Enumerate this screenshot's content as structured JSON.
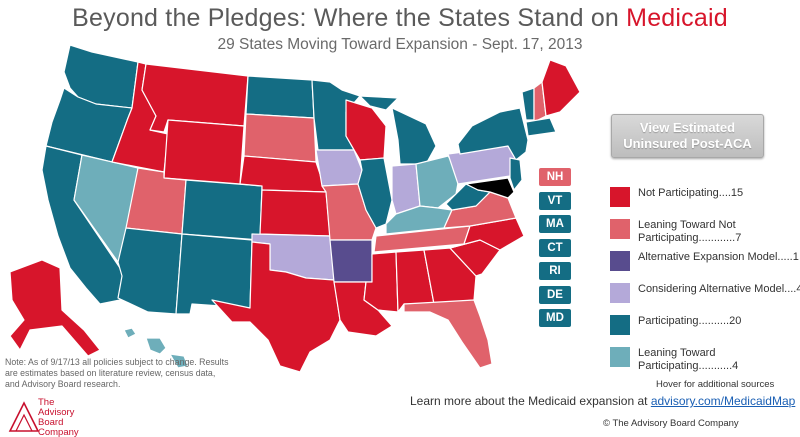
{
  "title": {
    "main": "Beyond the Pledges: Where the States Stand on ",
    "highlight": "Medicaid"
  },
  "subtitle": "29 States Moving Toward Expansion - Sept. 17, 2013",
  "button": {
    "line1": "View Estimated",
    "line2": "Uninsured Post-ACA"
  },
  "colors": {
    "not_participating": "#d7152b",
    "leaning_not": "#e0626b",
    "alternative": "#584c8e",
    "considering": "#b4a9d9",
    "participating": "#146d84",
    "leaning_toward": "#6eaeba"
  },
  "small_states": [
    {
      "code": "NH",
      "status": "leaning_not"
    },
    {
      "code": "VT",
      "status": "participating"
    },
    {
      "code": "MA",
      "status": "participating"
    },
    {
      "code": "CT",
      "status": "participating"
    },
    {
      "code": "RI",
      "status": "participating"
    },
    {
      "code": "DE",
      "status": "participating"
    },
    {
      "code": "MD",
      "status": "participating"
    }
  ],
  "legend": [
    {
      "key": "not_participating",
      "label": "Not Participating....15"
    },
    {
      "key": "leaning_not",
      "label": "Leaning Toward Not Participating............7"
    },
    {
      "key": "alternative",
      "label": "Alternative Expansion Model.....1"
    },
    {
      "key": "considering",
      "label": "Considering Alternative Model....4"
    },
    {
      "key": "participating",
      "label": "Participating..........20"
    },
    {
      "key": "leaning_toward",
      "label": "Leaning Toward Participating...........4"
    }
  ],
  "note": "Note: As of 9/17/13 all policies subject to change. Results are estimates based on literature review, census data, and Advisory Board research.",
  "hover_note": "Hover for additional sources",
  "learn_more": {
    "text": "Learn more about the Medicaid expansion at ",
    "link": "advisory.com/MedicaidMap"
  },
  "copyright": "© The Advisory Board Company",
  "logo": {
    "line1": "The",
    "line2": "Advisory",
    "line3": "Board",
    "line4": "Company"
  },
  "states": {
    "WA": "participating",
    "OR": "participating",
    "CA": "participating",
    "NV": "leaning_toward",
    "ID": "not_participating",
    "MT": "not_participating",
    "WY": "not_participating",
    "UT": "leaning_not",
    "AZ": "participating",
    "CO": "participating",
    "NM": "participating",
    "ND": "participating",
    "SD": "leaning_not",
    "NE": "not_participating",
    "KS": "not_participating",
    "OK": "considering",
    "TX": "not_participating",
    "MN": "participating",
    "IA": "considering",
    "MO": "leaning_not",
    "AR": "alternative",
    "LA": "not_participating",
    "WI": "not_participating",
    "IL": "participating",
    "MI": "participating",
    "IN": "considering",
    "OH": "leaning_toward",
    "KY": "leaning_toward",
    "TN": "leaning_not",
    "MS": "not_participating",
    "AL": "not_participating",
    "GA": "not_participating",
    "FL": "leaning_not",
    "SC": "not_participating",
    "NC": "not_participating",
    "VA": "leaning_not",
    "WV": "participating",
    "PA": "considering",
    "NY": "participating",
    "NJ": "participating",
    "ME": "not_participating",
    "NH": "leaning_not",
    "VT": "participating",
    "MA": "participating",
    "AK": "not_participating",
    "HI": "leaning_toward"
  }
}
